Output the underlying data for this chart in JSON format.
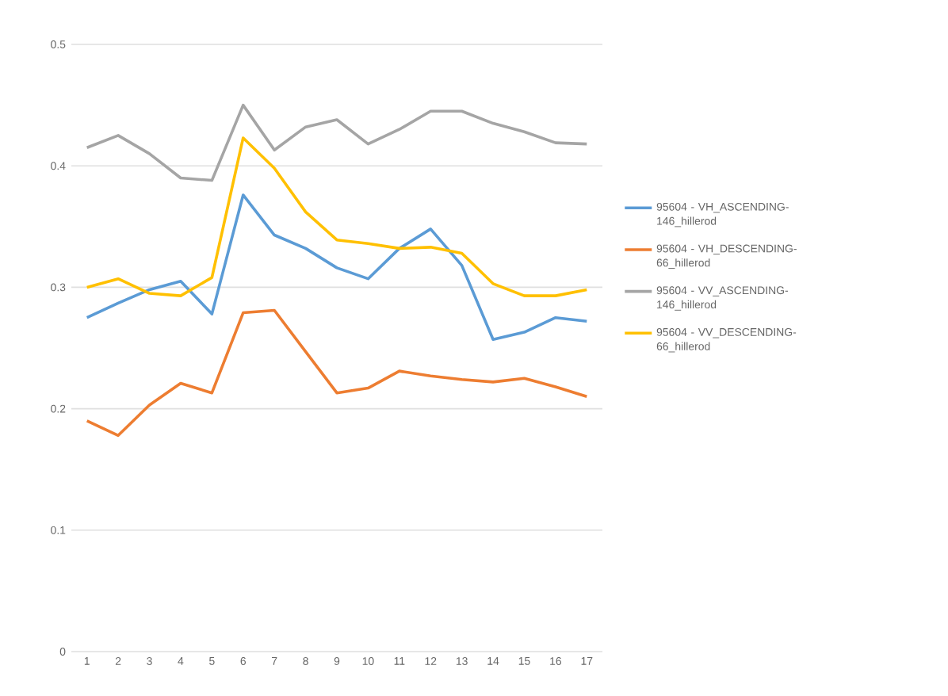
{
  "chart_data": {
    "type": "line",
    "categories": [
      "1",
      "2",
      "3",
      "4",
      "5",
      "6",
      "7",
      "8",
      "9",
      "10",
      "11",
      "12",
      "13",
      "14",
      "15",
      "16",
      "17"
    ],
    "ylim": [
      0,
      0.5
    ],
    "yticks": [
      0,
      0.1,
      0.2,
      0.3,
      0.4,
      0.5
    ],
    "grid": "y",
    "legend": "right",
    "series": [
      {
        "name": "95604 - VH_ASCENDING-146_hillerod",
        "color": "#5b9bd5",
        "values": [
          0.275,
          0.287,
          0.298,
          0.305,
          0.278,
          0.376,
          0.343,
          0.332,
          0.316,
          0.307,
          0.332,
          0.348,
          0.318,
          0.257,
          0.263,
          0.275,
          0.272
        ]
      },
      {
        "name": "95604 - VH_DESCENDING-66_hillerod",
        "color": "#ed7d31",
        "values": [
          0.19,
          0.178,
          0.203,
          0.221,
          0.213,
          0.279,
          0.281,
          0.247,
          0.213,
          0.217,
          0.231,
          0.227,
          0.224,
          0.222,
          0.225,
          0.218,
          0.21
        ]
      },
      {
        "name": "95604 - VV_ASCENDING-146_hillerod",
        "color": "#a5a5a5",
        "values": [
          0.415,
          0.425,
          0.41,
          0.39,
          0.388,
          0.45,
          0.413,
          0.432,
          0.438,
          0.418,
          0.43,
          0.445,
          0.445,
          0.435,
          0.428,
          0.419,
          0.418
        ]
      },
      {
        "name": "95604 - VV_DESCENDING-66_hillerod",
        "color": "#ffc000",
        "values": [
          0.3,
          0.307,
          0.295,
          0.293,
          0.308,
          0.423,
          0.398,
          0.362,
          0.339,
          0.336,
          0.332,
          0.333,
          0.328,
          0.303,
          0.293,
          0.293,
          0.298
        ]
      }
    ]
  }
}
